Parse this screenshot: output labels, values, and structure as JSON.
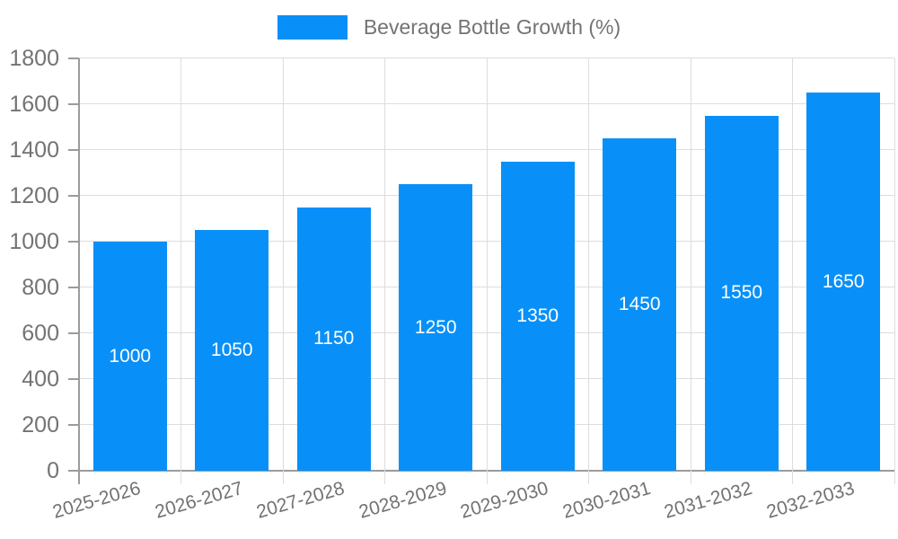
{
  "chart_data": {
    "type": "bar",
    "title": "",
    "legend": {
      "label": "Beverage Bottle Growth (%)",
      "position": "top-center"
    },
    "categories": [
      "2025-2026",
      "2026-2027",
      "2027-2028",
      "2028-2029",
      "2029-2030",
      "2030-2031",
      "2031-2032",
      "2032-2033"
    ],
    "series": [
      {
        "name": "Beverage Bottle Growth (%)",
        "values": [
          1000,
          1050,
          1150,
          1250,
          1350,
          1450,
          1550,
          1650
        ]
      }
    ],
    "value_labels": {
      "visible": true,
      "position": "center-of-bar"
    },
    "xlabel": "",
    "ylabel": "",
    "ylim": [
      0,
      1800
    ],
    "ytick_step": 200,
    "ytick_labels": [
      "0",
      "200",
      "400",
      "600",
      "800",
      "1000",
      "1200",
      "1400",
      "1600",
      "1800"
    ],
    "grid": true,
    "x_label_rotation_deg": -16,
    "colors": {
      "bar": "#0890F8",
      "gridline": "#DDDDDD",
      "axis": "#9B9B9B",
      "tick_text": "#737373",
      "legend_text": "#737373",
      "value_label_text": "#FFFFFF",
      "background": "#FFFFFF"
    }
  }
}
